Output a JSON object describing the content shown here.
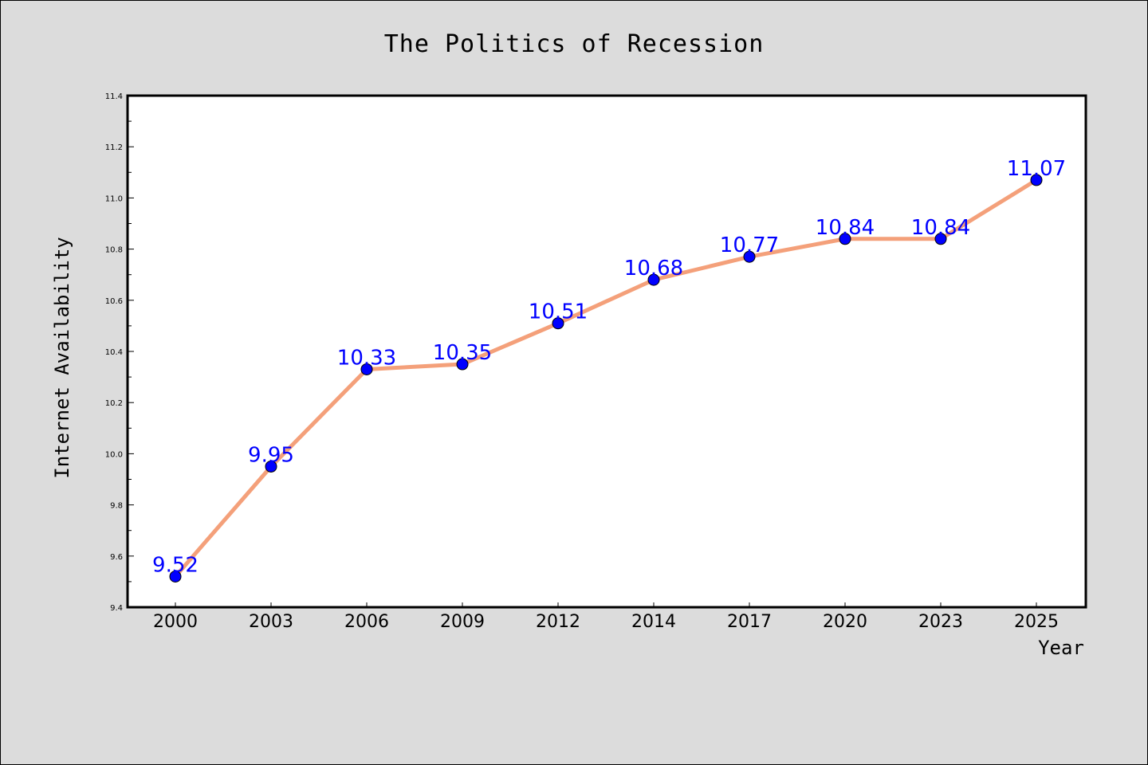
{
  "colors": {
    "background": "#dcdcdc",
    "plot_background": "#ffffff",
    "line": "#f4a07a",
    "marker": "#0000ff",
    "data_label": "#0000ff"
  },
  "chart_data": {
    "type": "line",
    "title": "The Politics of Recession",
    "xlabel": "Year",
    "ylabel": "Internet Availability",
    "categories": [
      "2000",
      "2003",
      "2006",
      "2009",
      "2012",
      "2014",
      "2017",
      "2020",
      "2023",
      "2025"
    ],
    "series": [
      {
        "values": [
          9.52,
          9.95,
          10.33,
          10.35,
          10.51,
          10.68,
          10.77,
          10.84,
          10.84,
          11.07
        ],
        "labels": [
          "9.52",
          "9.95",
          "10.33",
          "10.35",
          "10.51",
          "10.68",
          "10.77",
          "10.84",
          "10.84",
          "11.07"
        ]
      }
    ],
    "ylim": [
      9.4,
      11.4
    ],
    "yticks": [
      "9.4",
      "9.6",
      "9.8",
      "10.0",
      "10.2",
      "10.4",
      "10.6",
      "10.8",
      "11.0",
      "11.2",
      "11.4"
    ],
    "grid": false,
    "legend": "none"
  }
}
